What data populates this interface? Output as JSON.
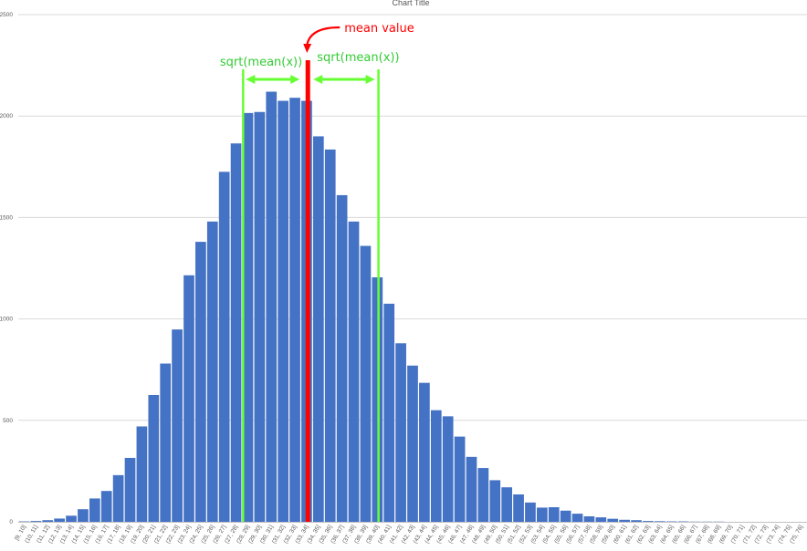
{
  "chart_data": {
    "type": "bar",
    "title": "Chart Title",
    "xlabel": "",
    "ylabel": "",
    "ylim": [
      0,
      2500
    ],
    "yticks": [
      0,
      500,
      1000,
      1500,
      2000,
      2500
    ],
    "grid": true,
    "legend": "none",
    "categories": [
      "[9, 10]",
      "(10, 11]",
      "(11, 12]",
      "(12, 13]",
      "(13, 14]",
      "(14, 15]",
      "(15, 16]",
      "(16, 17]",
      "(17, 18]",
      "(18, 19]",
      "(19, 20]",
      "(20, 21]",
      "(21, 22]",
      "(22, 23]",
      "(23, 24]",
      "(24, 25]",
      "(25, 26]",
      "(26, 27]",
      "(27, 28]",
      "(28, 29]",
      "(29, 30]",
      "(30, 31]",
      "(31, 32]",
      "(32, 33]",
      "(33, 34]",
      "(34, 35]",
      "(35, 36]",
      "(36, 37]",
      "(37, 38]",
      "(38, 39]",
      "(39, 40]",
      "(40, 41]",
      "(41, 42]",
      "(42, 43]",
      "(43, 44]",
      "(44, 45]",
      "(45, 46]",
      "(46, 47]",
      "(47, 48]",
      "(48, 49]",
      "(49, 50]",
      "(50, 51]",
      "(51, 52]",
      "(52, 53]",
      "(53, 54]",
      "(54, 55]",
      "(55, 56]",
      "(56, 57]",
      "(57, 58]",
      "(58, 59]",
      "(59, 60]",
      "(60, 61]",
      "(61, 62]",
      "(62, 63]",
      "(63, 64]",
      "(64, 65]",
      "(65, 66]",
      "(66, 67]",
      "(67, 68]",
      "(68, 69]",
      "(69, 70]",
      "(70, 71]",
      "(71, 72]",
      "(72, 73]",
      "(73, 74]",
      "(74, 75]",
      "(75, 76]"
    ],
    "values": [
      2,
      4,
      8,
      16,
      30,
      62,
      115,
      152,
      230,
      315,
      470,
      625,
      780,
      948,
      1215,
      1380,
      1480,
      1725,
      1865,
      2015,
      2020,
      2120,
      2075,
      2090,
      2075,
      1900,
      1835,
      1610,
      1480,
      1360,
      1205,
      1075,
      880,
      770,
      685,
      550,
      520,
      420,
      320,
      265,
      205,
      170,
      135,
      95,
      70,
      72,
      55,
      40,
      27,
      22,
      15,
      10,
      8,
      4,
      3,
      2,
      2,
      1,
      1,
      1,
      0,
      0,
      0,
      0,
      0,
      0,
      0
    ],
    "annotations": {
      "mean_label": "mean value",
      "left_label": "sqrt(mean(x))",
      "right_label": "sqrt(mean(x))",
      "mean_x": 33,
      "left_x": 27.3,
      "right_x": 38.7
    },
    "colors": {
      "bar": "#4472c4",
      "mean_line": "#ff0000",
      "sqrt_lines": "#66ff33",
      "grid": "#d9d9d9"
    }
  }
}
